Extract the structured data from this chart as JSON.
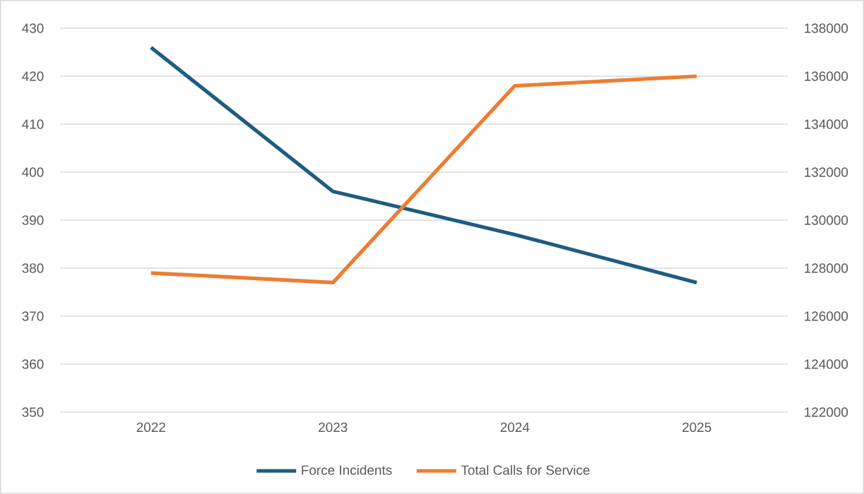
{
  "chart_data": {
    "type": "line",
    "categories": [
      "2022",
      "2023",
      "2024",
      "2025"
    ],
    "series": [
      {
        "name": "Force Incidents",
        "color": "#1f5c82",
        "values": [
          426,
          396,
          387,
          377
        ]
      },
      {
        "name": "Total Calls for Service",
        "color": "#ed7d31",
        "axis": "y2",
        "values": [
          127800,
          127400,
          135600,
          136000
        ]
      }
    ],
    "ylim": [
      350,
      430
    ],
    "yticks": [
      350,
      360,
      370,
      380,
      390,
      400,
      410,
      420,
      430
    ],
    "y2lim": [
      122000,
      138000
    ],
    "y2ticks": [
      122000,
      124000,
      126000,
      128000,
      130000,
      132000,
      134000,
      136000,
      138000
    ],
    "grid": "y",
    "legend": "bottom"
  }
}
